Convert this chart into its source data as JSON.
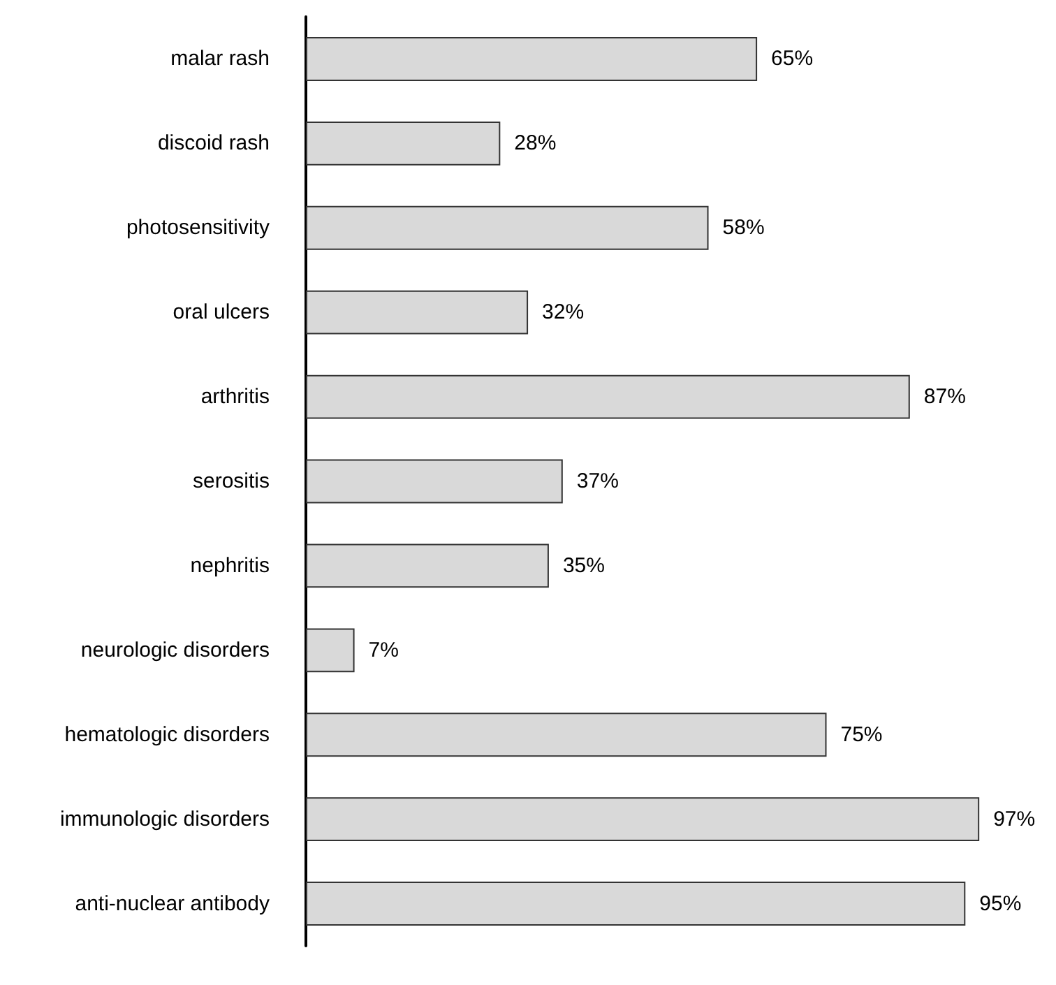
{
  "chart_data": {
    "type": "bar",
    "orientation": "horizontal",
    "categories": [
      "malar rash",
      "discoid rash",
      "photosensitivity",
      "oral ulcers",
      "arthritis",
      "serositis",
      "nephritis",
      "neurologic disorders",
      "hematologic disorders",
      "immunologic disorders",
      "anti-nuclear antibody"
    ],
    "values": [
      65,
      28,
      58,
      32,
      87,
      37,
      35,
      7,
      75,
      97,
      95
    ],
    "value_labels": [
      "65%",
      "28%",
      "58%",
      "32%",
      "87%",
      "37%",
      "35%",
      "7%",
      "75%",
      "97%",
      "95%"
    ],
    "color": "#d9d9d9",
    "grid": false
  }
}
